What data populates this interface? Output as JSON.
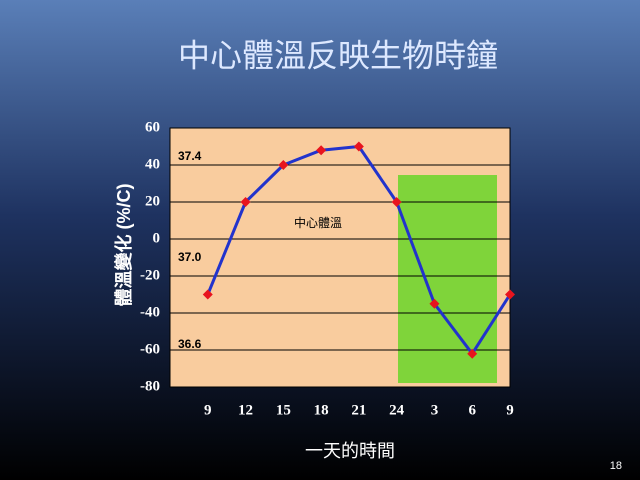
{
  "chart_data": {
    "type": "line",
    "title": "中心體溫反映生物時鐘",
    "y_axis_label": "體溫變化 (%/C)",
    "x_axis_label": "一天的時間",
    "categories": [
      "9",
      "12",
      "15",
      "18",
      "21",
      "24",
      "3",
      "6",
      "9"
    ],
    "values": [
      -30,
      20,
      40,
      48,
      50,
      20,
      -35,
      -62,
      -30
    ],
    "color": "#2233cc",
    "marker_color": "#e8141e",
    "ylim": [
      -80,
      60
    ],
    "yticks": [
      -80,
      -60,
      -40,
      -20,
      0,
      20,
      40,
      60
    ],
    "grid": true,
    "annotations": [
      "37.4",
      "37.0",
      "36.6",
      "中心體溫"
    ],
    "page_number": "18"
  }
}
